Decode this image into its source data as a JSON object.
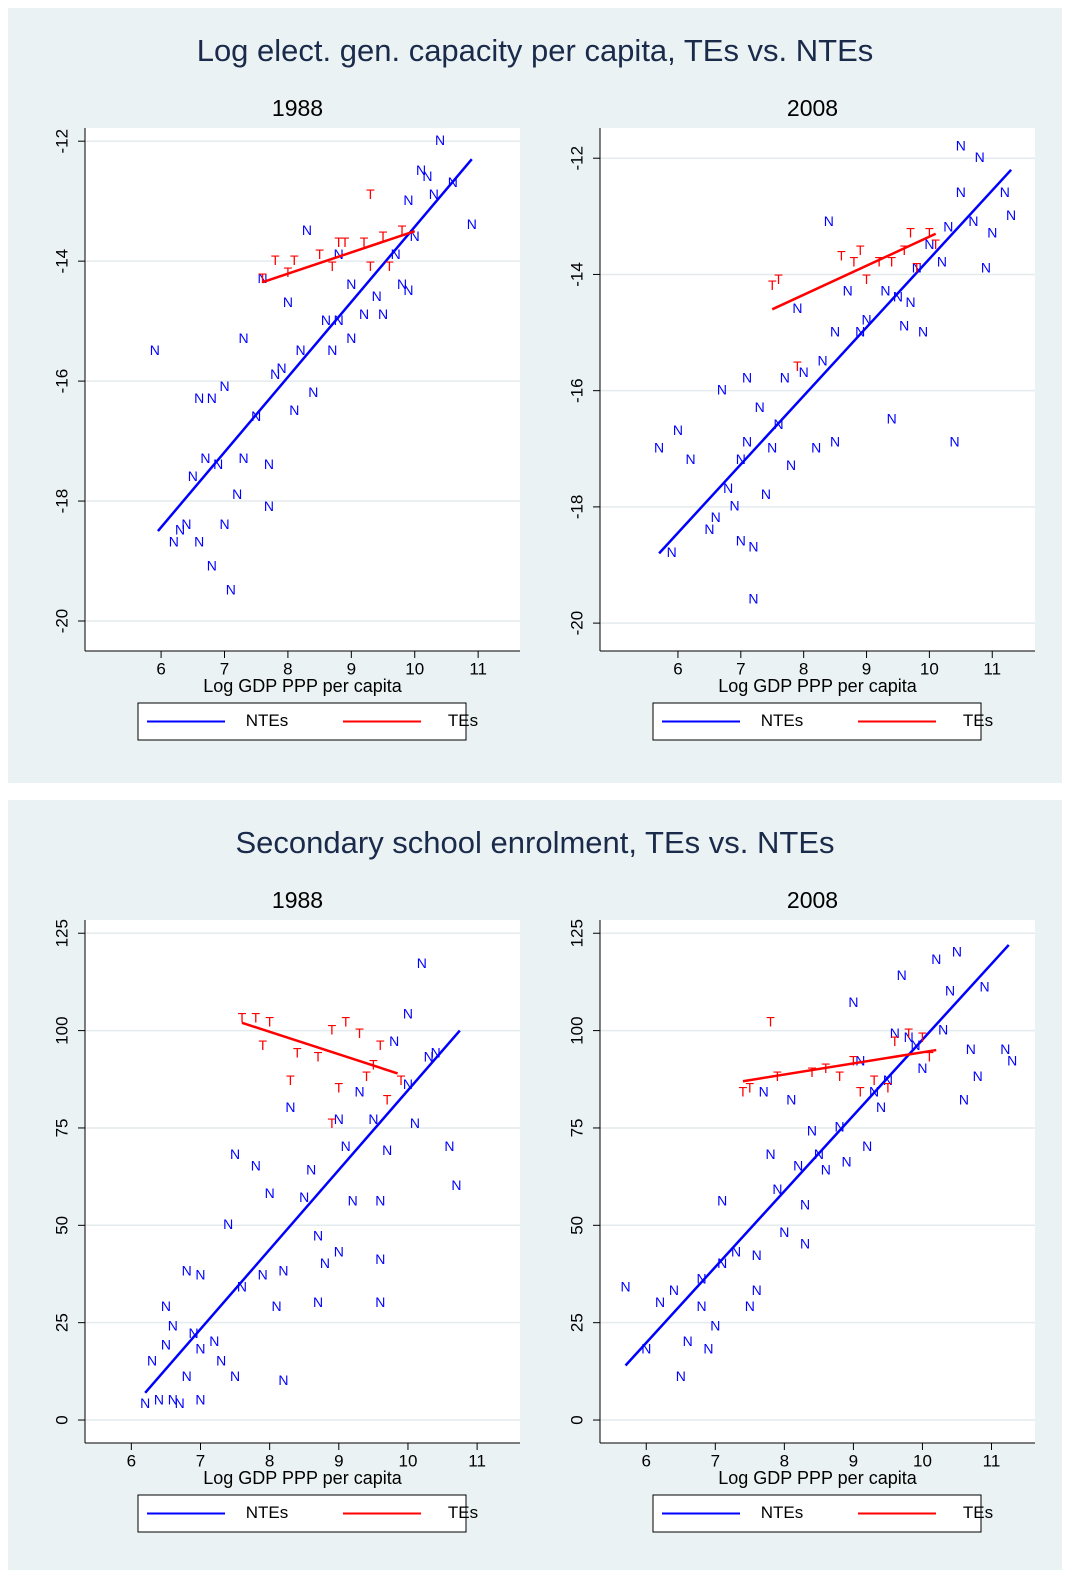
{
  "chart_data": [
    {
      "type": "scatter",
      "title": "Log elect. gen. capacity per capita, TEs vs. NTEs",
      "legend": "bottom",
      "grid": true,
      "panels": [
        {
          "subtitle": "1988",
          "xlabel": "Log GDP PPP per capita",
          "xlim": [
            4.8,
            11.66
          ],
          "xticks": [
            6,
            7,
            8,
            9,
            10,
            11
          ],
          "ylim": [
            -20.5,
            -11.78
          ],
          "yticks": [
            -20,
            -18,
            -16,
            -14,
            -12
          ],
          "series": [
            {
              "name": "NTEs",
              "color": "#0000ff",
              "marker": "N",
              "x": [
                5.9,
                6.2,
                6.3,
                6.4,
                6.5,
                6.6,
                6.6,
                6.7,
                6.8,
                6.8,
                6.9,
                7.0,
                7.0,
                7.1,
                7.2,
                7.3,
                7.3,
                7.5,
                7.6,
                7.7,
                7.7,
                7.9,
                8.0,
                8.1,
                8.2,
                8.3,
                8.4,
                8.6,
                8.7,
                8.8,
                9.0,
                9.0,
                9.2,
                9.4,
                9.5,
                9.7,
                9.8,
                9.9,
                10.0,
                10.1,
                10.2,
                10.3,
                10.4,
                10.6,
                10.9,
                9.9,
                8.8,
                7.8
              ],
              "values": [
                -15.5,
                -18.7,
                -18.5,
                -18.4,
                -17.6,
                -16.3,
                -18.7,
                -17.3,
                -16.3,
                -19.1,
                -17.4,
                -16.1,
                -18.4,
                -19.5,
                -17.9,
                -15.3,
                -17.3,
                -16.6,
                -14.3,
                -18.1,
                -17.4,
                -15.8,
                -14.7,
                -16.5,
                -15.5,
                -13.5,
                -16.2,
                -15.0,
                -15.5,
                -15.0,
                -14.4,
                -15.3,
                -14.9,
                -14.6,
                -14.9,
                -13.9,
                -14.4,
                -13.0,
                -13.6,
                -12.5,
                -12.6,
                -12.9,
                -12.0,
                -12.7,
                -13.4,
                -14.5,
                -13.9,
                -15.9
              ],
              "fit_x": [
                5.95,
                10.9
              ],
              "fit_values": [
                -18.5,
                -12.3
              ]
            },
            {
              "name": "TEs",
              "color": "#ff0000",
              "marker": "T",
              "x": [
                7.6,
                7.8,
                8.0,
                8.1,
                8.5,
                8.7,
                8.9,
                9.2,
                9.3,
                9.5,
                9.6,
                9.8,
                9.3,
                8.8
              ],
              "values": [
                -14.3,
                -14.0,
                -14.2,
                -14.0,
                -13.9,
                -14.1,
                -13.7,
                -13.7,
                -12.9,
                -13.6,
                -14.1,
                -13.5,
                -14.1,
                -13.7
              ],
              "fit_x": [
                7.6,
                10.0
              ],
              "fit_values": [
                -14.35,
                -13.5
              ]
            }
          ]
        },
        {
          "subtitle": "2008",
          "xlabel": "Log GDP PPP per capita",
          "xlim": [
            4.76,
            11.68
          ],
          "xticks": [
            6,
            7,
            8,
            9,
            10,
            11
          ],
          "ylim": [
            -20.48,
            -11.48
          ],
          "yticks": [
            -20,
            -18,
            -16,
            -14,
            -12
          ],
          "series": [
            {
              "name": "NTEs",
              "color": "#0000ff",
              "marker": "N",
              "x": [
                5.7,
                5.9,
                6.0,
                6.2,
                6.5,
                6.6,
                6.7,
                6.8,
                6.9,
                7.0,
                7.0,
                7.1,
                7.1,
                7.2,
                7.2,
                7.3,
                7.4,
                7.5,
                7.6,
                7.7,
                7.8,
                7.9,
                8.0,
                8.2,
                8.3,
                8.4,
                8.5,
                8.5,
                8.7,
                8.9,
                9.0,
                9.3,
                9.4,
                9.5,
                9.7,
                9.8,
                10.0,
                10.2,
                10.3,
                10.4,
                10.5,
                10.5,
                10.7,
                10.8,
                10.9,
                11.0,
                11.2,
                11.3,
                9.6,
                9.9
              ],
              "values": [
                -17.0,
                -18.8,
                -16.7,
                -17.2,
                -18.4,
                -18.2,
                -16.0,
                -17.7,
                -18.0,
                -18.6,
                -17.2,
                -16.9,
                -15.8,
                -18.7,
                -19.6,
                -16.3,
                -17.8,
                -17.0,
                -16.6,
                -15.8,
                -17.3,
                -14.6,
                -15.7,
                -17.0,
                -15.5,
                -13.1,
                -15.0,
                -16.9,
                -14.3,
                -15.0,
                -14.8,
                -14.3,
                -16.5,
                -14.4,
                -14.5,
                -13.9,
                -13.5,
                -13.8,
                -13.2,
                -16.9,
                -12.6,
                -11.8,
                -13.1,
                -12.0,
                -13.9,
                -13.3,
                -12.6,
                -13.0,
                -14.9,
                -15.0
              ],
              "fit_x": [
                5.7,
                11.3
              ],
              "fit_values": [
                -18.8,
                -12.2
              ]
            },
            {
              "name": "TEs",
              "color": "#ff0000",
              "marker": "T",
              "x": [
                7.5,
                7.6,
                7.9,
                8.6,
                8.8,
                8.9,
                9.0,
                9.2,
                9.4,
                9.6,
                9.7,
                9.8,
                10.0,
                10.1
              ],
              "values": [
                -14.2,
                -14.1,
                -15.6,
                -13.7,
                -13.8,
                -13.6,
                -14.1,
                -13.8,
                -13.8,
                -13.6,
                -13.3,
                -13.9,
                -13.3,
                -13.5
              ],
              "fit_x": [
                7.5,
                10.1
              ],
              "fit_values": [
                -14.6,
                -13.3
              ]
            }
          ]
        }
      ]
    },
    {
      "type": "scatter",
      "title": "Secondary school enrolment, TEs vs. NTEs",
      "legend": "bottom",
      "grid": true,
      "panels": [
        {
          "subtitle": "1988",
          "xlabel": "Log GDP PPP per capita",
          "xlim": [
            5.33,
            11.62
          ],
          "xticks": [
            6,
            7,
            8,
            9,
            10,
            11
          ],
          "ylim": [
            -5.9,
            128.4
          ],
          "yticks": [
            0,
            25,
            50,
            75,
            100,
            125
          ],
          "series": [
            {
              "name": "NTEs",
              "color": "#0000ff",
              "marker": "N",
              "x": [
                6.2,
                6.3,
                6.4,
                6.5,
                6.5,
                6.6,
                6.6,
                6.7,
                6.8,
                6.8,
                6.9,
                7.0,
                7.0,
                7.0,
                7.2,
                7.3,
                7.4,
                7.5,
                7.5,
                7.6,
                7.8,
                7.9,
                8.0,
                8.1,
                8.2,
                8.2,
                8.3,
                8.5,
                8.6,
                8.7,
                8.7,
                8.8,
                9.0,
                9.0,
                9.1,
                9.2,
                9.3,
                9.5,
                9.6,
                9.6,
                9.6,
                9.7,
                9.8,
                10.0,
                10.0,
                10.1,
                10.2,
                10.3,
                10.6,
                10.7,
                10.4
              ],
              "values": [
                4,
                15,
                5,
                29,
                19,
                24,
                5,
                4,
                11,
                38,
                22,
                37,
                5,
                18,
                20,
                15,
                50,
                11,
                68,
                34,
                65,
                37,
                58,
                29,
                10,
                38,
                80,
                57,
                64,
                47,
                30,
                40,
                43,
                77,
                70,
                56,
                84,
                77,
                41,
                30,
                56,
                69,
                97,
                104,
                86,
                76,
                117,
                93,
                70,
                60,
                94
              ],
              "fit_x": [
                6.2,
                10.75
              ],
              "fit_values": [
                7,
                100
              ]
            },
            {
              "name": "TEs",
              "color": "#ff0000",
              "marker": "T",
              "x": [
                7.6,
                7.8,
                7.9,
                8.0,
                8.3,
                8.4,
                8.7,
                8.9,
                9.1,
                9.0,
                9.3,
                9.4,
                9.5,
                9.6,
                9.7,
                9.9,
                8.9
              ],
              "values": [
                103,
                103,
                96,
                102,
                87,
                94,
                93,
                100,
                102,
                85,
                99,
                88,
                91,
                96,
                82,
                87,
                76
              ],
              "fit_x": [
                7.6,
                9.85
              ],
              "fit_values": [
                102,
                89
              ]
            }
          ]
        },
        {
          "subtitle": "2008",
          "xlabel": "Log GDP PPP per capita",
          "xlim": [
            5.33,
            11.63
          ],
          "xticks": [
            6,
            7,
            8,
            9,
            10,
            11
          ],
          "ylim": [
            -5.9,
            128.4
          ],
          "yticks": [
            0,
            25,
            50,
            75,
            100,
            125
          ],
          "series": [
            {
              "name": "NTEs",
              "color": "#0000ff",
              "marker": "N",
              "x": [
                5.7,
                6.0,
                6.2,
                6.4,
                6.5,
                6.6,
                6.8,
                6.8,
                6.9,
                7.0,
                7.1,
                7.1,
                7.3,
                7.5,
                7.6,
                7.6,
                7.7,
                7.8,
                7.9,
                8.0,
                8.1,
                8.2,
                8.3,
                8.3,
                8.4,
                8.5,
                8.6,
                8.8,
                8.9,
                9.0,
                9.1,
                9.2,
                9.3,
                9.4,
                9.5,
                9.6,
                9.7,
                9.8,
                9.9,
                10.0,
                10.2,
                10.3,
                10.4,
                10.5,
                10.6,
                10.7,
                10.9,
                11.2,
                11.3,
                10.8
              ],
              "values": [
                34,
                18,
                30,
                33,
                11,
                20,
                36,
                29,
                18,
                24,
                56,
                40,
                43,
                29,
                42,
                33,
                84,
                68,
                59,
                48,
                82,
                65,
                45,
                55,
                74,
                68,
                64,
                75,
                66,
                107,
                92,
                70,
                84,
                80,
                87,
                99,
                114,
                98,
                96,
                90,
                118,
                100,
                110,
                120,
                82,
                95,
                111,
                95,
                92,
                88
              ],
              "fit_x": [
                5.7,
                11.25
              ],
              "fit_values": [
                14,
                122
              ]
            },
            {
              "name": "TEs",
              "color": "#ff0000",
              "marker": "T",
              "x": [
                7.4,
                7.5,
                7.8,
                7.9,
                8.4,
                8.6,
                8.8,
                9.0,
                9.1,
                9.3,
                9.5,
                9.6,
                9.8,
                10.0,
                10.1
              ],
              "values": [
                84,
                85,
                102,
                88,
                89,
                90,
                88,
                92,
                84,
                87,
                85,
                97,
                99,
                98,
                93
              ],
              "fit_x": [
                7.4,
                10.2
              ],
              "fit_values": [
                87,
                95
              ]
            }
          ]
        }
      ]
    }
  ]
}
